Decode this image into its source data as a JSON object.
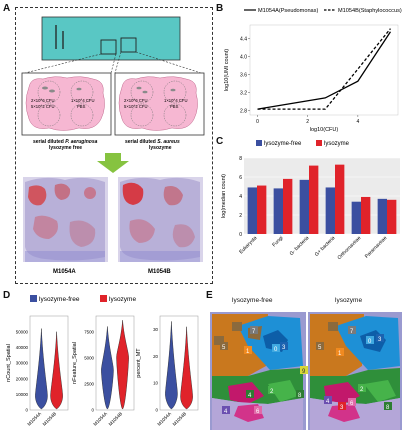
{
  "panels": {
    "A": {
      "label": "A",
      "dish_left": {
        "cells": [
          "2×10^6 CFU",
          "1×10^4 CFU",
          "5×10^2 CFU",
          "PBS"
        ],
        "caption_line1": "serial diluted",
        "caption_species": "P. aeruginosa",
        "caption_line2": "lysozyme free"
      },
      "dish_right": {
        "cells": [
          "2×10^6 CFU",
          "1×10^4 CFU",
          "5×10^2 CFU",
          "PBS"
        ],
        "caption_line1": "serial diluted",
        "caption_species": "S. aureus",
        "caption_line2": "lysozyme"
      },
      "section_left_label": "M1054A",
      "section_right_label": "M1054B"
    },
    "B": {
      "label": "B",
      "legend": [
        "M1054A(Pseudomonas)",
        "M1054B(Staphylococcus)"
      ],
      "xlabel": "log10(CFU)",
      "ylabel": "log10(UMI count)",
      "x_ticks": [
        "0",
        "2",
        "4"
      ],
      "y_ticks": [
        "2.8",
        "3.2",
        "3.6",
        "4.0",
        "4.4"
      ]
    },
    "C": {
      "label": "C",
      "legend": [
        "lysozyme-free",
        "lysozyme"
      ],
      "ylabel": "log(median count)",
      "y_ticks": [
        "0",
        "2",
        "4",
        "6",
        "8"
      ]
    },
    "D": {
      "label": "D",
      "legend": [
        "lysozyme-free",
        "lysozyme"
      ],
      "plots": [
        {
          "ylabel": "nCount_Spatial",
          "ticks": [
            "0",
            "10000",
            "20000",
            "30000",
            "40000",
            "50000"
          ],
          "xticks": [
            "M1054A",
            "M1054B"
          ]
        },
        {
          "ylabel": "nFeature_Spatial",
          "ticks": [
            "0",
            "2500",
            "5000",
            "7500"
          ],
          "xticks": [
            "M1054A",
            "M1054B"
          ]
        },
        {
          "ylabel": "percent_MT",
          "ticks": [
            "0",
            "10",
            "20",
            "30"
          ],
          "xticks": [
            "M1054A",
            "M1054B"
          ]
        }
      ]
    },
    "E": {
      "label": "E",
      "left_title": "lysozyme-free",
      "right_title": "lysozyme"
    }
  },
  "colors": {
    "teal": "#59c7c4",
    "pink": "#f6b7d2",
    "blue": "#3b4fa0",
    "red": "#e0232a",
    "green_arrow": "#86c340"
  },
  "chart_data": [
    {
      "type": "line",
      "panel": "B",
      "xlabel": "log10(CFU)",
      "ylabel": "log10(UMI count)",
      "ylim": [
        2.7,
        4.7
      ],
      "xlim": [
        -0.3,
        5.6
      ],
      "legend": "top",
      "series": [
        {
          "name": "M1054A(Pseudomonas)",
          "style": "solid",
          "x": [
            0,
            2.7,
            4.0,
            5.3
          ],
          "y": [
            2.83,
            3.08,
            3.45,
            4.55
          ]
        },
        {
          "name": "M1054B(Staphylococcus)",
          "style": "dashed",
          "x": [
            0,
            2.7,
            4.0,
            5.3
          ],
          "y": [
            2.83,
            2.83,
            3.72,
            4.62
          ]
        }
      ]
    },
    {
      "type": "bar",
      "panel": "C",
      "categories": [
        "Eukaryota",
        "Fungi",
        "G- bacteria",
        "G+ bacteria",
        "Orthornavirae",
        "Pararnavirae"
      ],
      "ylabel": "log(median count)",
      "ylim": [
        0,
        8
      ],
      "legend": "top",
      "series": [
        {
          "name": "lysozyme-free",
          "values": [
            4.9,
            4.8,
            5.7,
            4.9,
            3.4,
            3.7
          ]
        },
        {
          "name": "lysozyme",
          "values": [
            5.1,
            5.8,
            7.2,
            7.3,
            3.9,
            3.6
          ]
        }
      ]
    },
    {
      "type": "violin",
      "panel": "D",
      "legend": "top",
      "plots": [
        {
          "ylabel": "nCount_Spatial",
          "ylim": [
            0,
            60000
          ],
          "categories": [
            "M1054A",
            "M1054B"
          ],
          "medians": [
            9000,
            9000
          ],
          "max": [
            52000,
            50000
          ]
        },
        {
          "ylabel": "nFeature_Spatial",
          "ylim": [
            0,
            9000
          ],
          "categories": [
            "M1054A",
            "M1054B"
          ],
          "medians": [
            3800,
            5000
          ],
          "max": [
            8000,
            8600
          ]
        },
        {
          "ylabel": "percent_MT",
          "ylim": [
            0,
            35
          ],
          "categories": [
            "M1054A",
            "M1054B"
          ],
          "medians": [
            6,
            5
          ],
          "max": [
            33,
            31
          ]
        }
      ]
    }
  ]
}
